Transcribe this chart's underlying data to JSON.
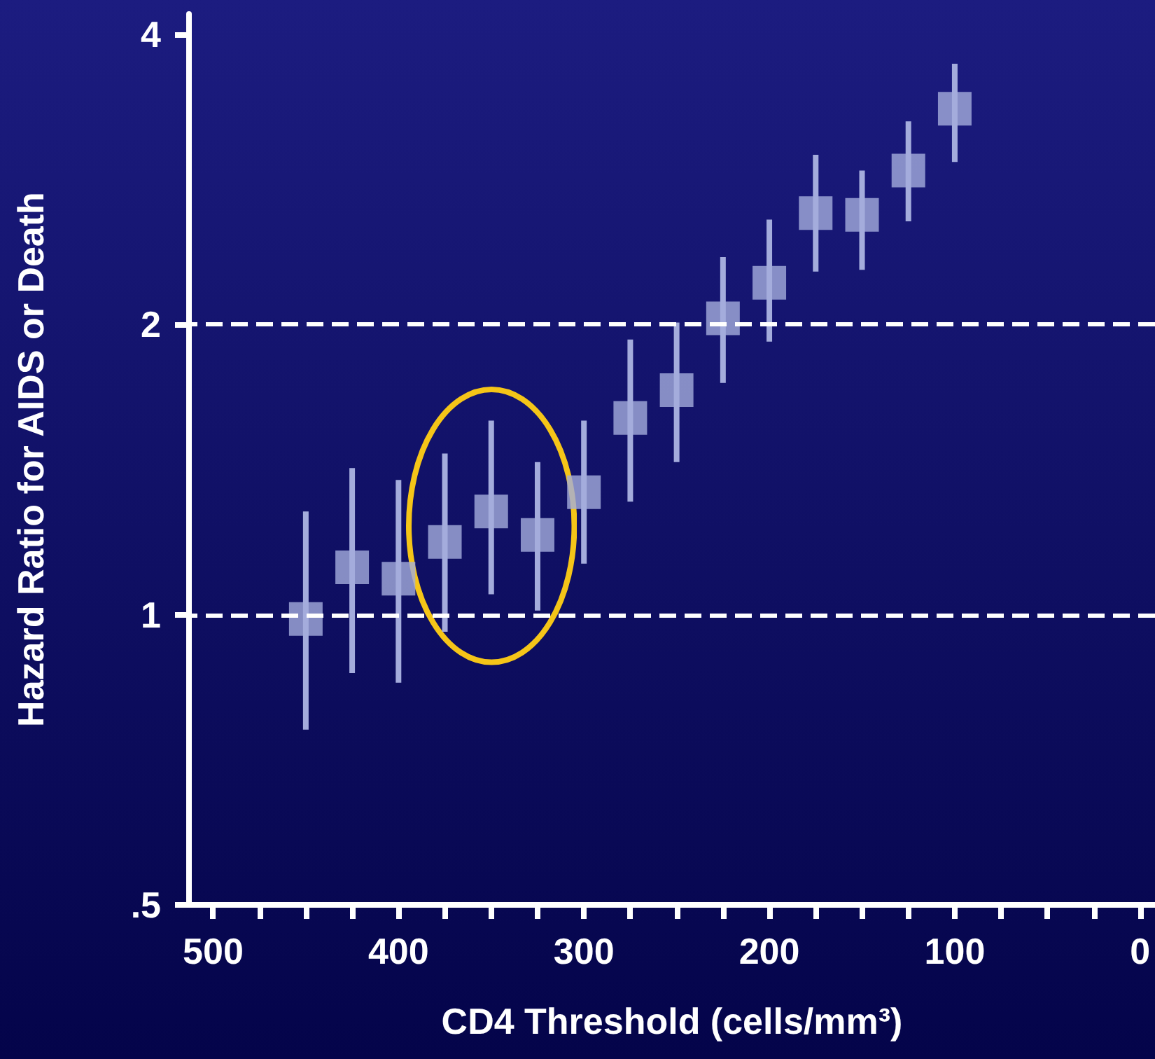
{
  "chart_data": {
    "type": "scatter",
    "xlabel": "CD4 Threshold (cells/mm³)",
    "ylabel": "Hazard Ratio for AIDS or Death",
    "x": [
      450,
      425,
      400,
      375,
      350,
      325,
      300,
      275,
      250,
      225,
      200,
      175,
      150,
      125,
      100
    ],
    "series": [
      {
        "color": "#a4acdc",
        "values": [
          0.99,
          1.12,
          1.09,
          1.19,
          1.28,
          1.21,
          1.34,
          1.6,
          1.71,
          2.03,
          2.21,
          2.61,
          2.6,
          2.89,
          3.35
        ],
        "errors": [
          [
            0.76,
            1.28
          ],
          [
            0.87,
            1.42
          ],
          [
            0.85,
            1.38
          ],
          [
            0.96,
            1.47
          ],
          [
            1.05,
            1.59
          ],
          [
            1.01,
            1.44
          ],
          [
            1.13,
            1.59
          ],
          [
            1.31,
            1.93
          ],
          [
            1.44,
            2.01
          ],
          [
            1.74,
            2.35
          ],
          [
            1.92,
            2.57
          ],
          [
            2.27,
            3.0
          ],
          [
            2.28,
            2.89
          ],
          [
            2.56,
            3.25
          ],
          [
            2.95,
            3.73
          ]
        ]
      }
    ],
    "marker": "square",
    "log": true,
    "grid": false,
    "xlim": [
      513,
      -8
    ],
    "xticks": [
      {
        "value": 500,
        "label": "500"
      },
      {
        "value": 475,
        "label": null
      },
      {
        "value": 450,
        "label": null
      },
      {
        "value": 425,
        "label": null
      },
      {
        "value": 400,
        "label": "400"
      },
      {
        "value": 375,
        "label": null
      },
      {
        "value": 350,
        "label": null
      },
      {
        "value": 325,
        "label": null
      },
      {
        "value": 300,
        "label": "300"
      },
      {
        "value": 275,
        "label": null
      },
      {
        "value": 250,
        "label": null
      },
      {
        "value": 225,
        "label": null
      },
      {
        "value": 200,
        "label": "200"
      },
      {
        "value": 175,
        "label": null
      },
      {
        "value": 150,
        "label": null
      },
      {
        "value": 125,
        "label": null
      },
      {
        "value": 100,
        "label": "100"
      },
      {
        "value": 75,
        "label": null
      },
      {
        "value": 50,
        "label": null
      },
      {
        "value": 25,
        "label": null
      },
      {
        "value": 0,
        "label": "0"
      }
    ],
    "ylim": [
      0.5,
      4.2
    ],
    "yticks": [
      {
        "value": 0.5,
        "label": ".5"
      },
      1,
      2,
      4
    ],
    "ref_lines": [
      {
        "axis": "y",
        "value": 1,
        "color": "#ffffff",
        "line_style": "dashed"
      },
      {
        "axis": "y",
        "value": 2,
        "color": "#ffffff",
        "line_style": "dashed"
      }
    ]
  }
}
